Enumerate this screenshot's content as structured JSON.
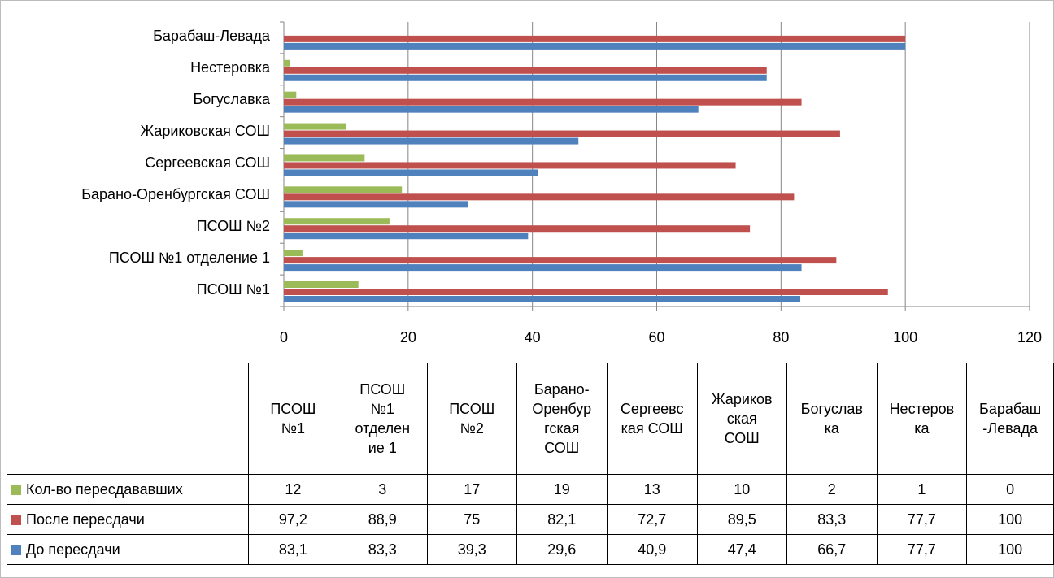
{
  "chart_data": {
    "type": "bar",
    "orientation": "horizontal",
    "categories": [
      "ПСОШ №1",
      "ПСОШ №1 отделение 1",
      "ПСОШ №2",
      "Барано-Оренбургская СОШ",
      "Сергеевская СОШ",
      "Жариковская СОШ",
      "Богуславка",
      "Нестеровка",
      "Барабаш-Левада"
    ],
    "series": [
      {
        "name": "Кол-во пересдававших",
        "color": "#9BBB59",
        "values": [
          12,
          3,
          17,
          19,
          13,
          10,
          2,
          1,
          0
        ],
        "labels": [
          "12",
          "3",
          "17",
          "19",
          "13",
          "10",
          "2",
          "1",
          "0"
        ]
      },
      {
        "name": "После пересдачи",
        "color": "#C0504D",
        "values": [
          97.2,
          88.9,
          75,
          82.1,
          72.7,
          89.5,
          83.3,
          77.7,
          100
        ],
        "labels": [
          "97,2",
          "88,9",
          "75",
          "82,1",
          "72,7",
          "89,5",
          "83,3",
          "77,7",
          "100"
        ]
      },
      {
        "name": "До пересдачи",
        "color": "#4F81BD",
        "values": [
          83.1,
          83.3,
          39.3,
          29.6,
          40.9,
          47.4,
          66.7,
          77.7,
          100
        ],
        "labels": [
          "83,1",
          "83,3",
          "39,3",
          "29,6",
          "40,9",
          "47,4",
          "66,7",
          "77,7",
          "100"
        ]
      }
    ],
    "axis_categories": [
      "Барабаш-Левада",
      "Нестеровка",
      "Богуславка",
      "Жариковская СОШ ",
      "Сергеевская СОШ ",
      "Барано-Оренбургская СОШ",
      "ПСОШ №2",
      "ПСОШ №1 отделение 1",
      "ПСОШ №1"
    ],
    "table_headers": [
      [
        "ПСОШ",
        "№1"
      ],
      [
        "ПСОШ",
        "№1",
        "отделен",
        "ие 1"
      ],
      [
        "ПСОШ",
        "№2"
      ],
      [
        "Барано-",
        "Оренбур",
        "гская",
        "СОШ"
      ],
      [
        "Сергеевс",
        "кая СОШ"
      ],
      [
        "Жариков",
        "ская",
        "СОШ"
      ],
      [
        "Богуслав",
        "ка"
      ],
      [
        "Нестеров",
        "ка"
      ],
      [
        "Барабаш",
        "-Левада"
      ]
    ],
    "xlim": [
      0,
      120
    ],
    "xticks": [
      "0",
      "20",
      "40",
      "60",
      "80",
      "100",
      "120"
    ],
    "grid": true,
    "legend": "data table"
  }
}
